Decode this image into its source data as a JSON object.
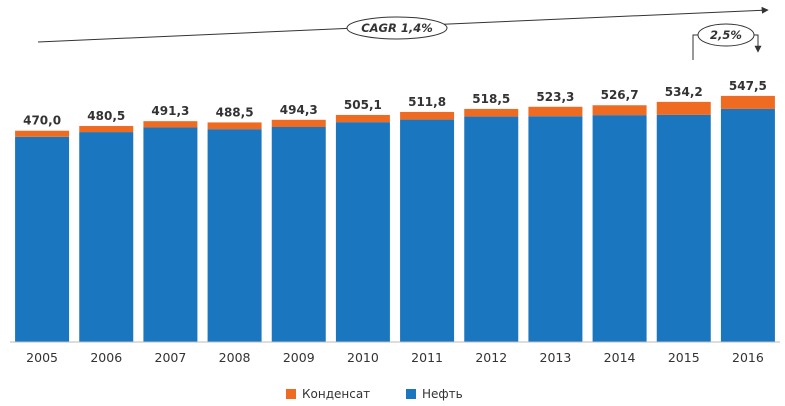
{
  "chart_data": {
    "type": "bar",
    "stacked": true,
    "categories": [
      "2005",
      "2006",
      "2007",
      "2008",
      "2009",
      "2010",
      "2011",
      "2012",
      "2013",
      "2014",
      "2015",
      "2016"
    ],
    "totals": [
      "470,0",
      "480,5",
      "491,3",
      "488,5",
      "494,3",
      "505,1",
      "511,8",
      "518,5",
      "523,3",
      "526,7",
      "534,2",
      "547,5"
    ],
    "series": [
      {
        "name": "Нефть",
        "color": "#1a76be",
        "values": [
          456.5,
          467.0,
          477.3,
          473.5,
          478.3,
          489.1,
          494.8,
          501.5,
          502.3,
          504.7,
          505.2,
          518.5
        ]
      },
      {
        "name": "Конденсат",
        "color": "#ef6b22",
        "values": [
          13.5,
          13.5,
          14.0,
          15.0,
          16.0,
          16.0,
          17.0,
          17.0,
          21.0,
          22.0,
          29.0,
          29.0
        ]
      }
    ],
    "legend_position": "bottom-center",
    "annotations": [
      {
        "text": "CAGR 1,4%",
        "from": "2005",
        "to": "2016"
      },
      {
        "text": "2,5%",
        "from": "2015",
        "to": "2016"
      }
    ],
    "grid": false
  }
}
